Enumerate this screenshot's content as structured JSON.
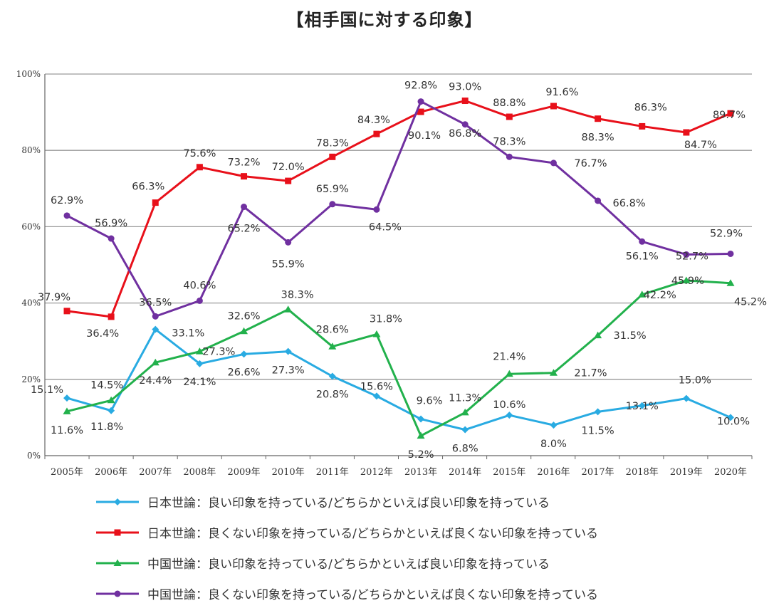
{
  "title": "【相手国に対する印象】",
  "chart_data": {
    "type": "line",
    "title": "【相手国に対する印象】",
    "x": [
      "2005年",
      "2006年",
      "2007年",
      "2008年",
      "2009年",
      "2010年",
      "2011年",
      "2012年",
      "2013年",
      "2014年",
      "2015年",
      "2016年",
      "2017年",
      "2018年",
      "2019年",
      "2020年"
    ],
    "yticks": [
      "0%",
      "20%",
      "40%",
      "60%",
      "80%",
      "100%"
    ],
    "ylim": [
      0,
      100
    ],
    "grid": "horizontal",
    "legend_position": "bottom",
    "series": [
      {
        "name": "日本世論：良い印象を持っている/どちらかといえば良い印象を持っている",
        "color": "#29abe2",
        "marker": "diamond",
        "values": [
          15.1,
          11.8,
          33.1,
          24.1,
          26.6,
          27.3,
          20.8,
          15.6,
          9.6,
          6.8,
          10.6,
          8.0,
          11.5,
          13.1,
          15.0,
          10.0
        ],
        "labels": [
          "15.1%",
          "11.8%",
          "33.1%",
          "24.1%",
          "26.6%",
          "27.3%",
          "20.8%",
          "15.6%",
          "9.6%",
          "6.8%",
          "10.6%",
          "8.0%",
          "11.5%",
          "13.1%",
          "15.0%",
          "10.0%"
        ]
      },
      {
        "name": "日本世論：良くない印象を持っている/どちらかといえば良くない印象を持っている",
        "color": "#e8101a",
        "marker": "square",
        "values": [
          37.9,
          36.4,
          66.3,
          75.6,
          73.2,
          72.0,
          78.3,
          84.3,
          90.1,
          93.0,
          88.8,
          91.6,
          88.3,
          86.3,
          84.7,
          89.7
        ],
        "labels": [
          "37.9%",
          "36.4%",
          "66.3%",
          "75.6%",
          "73.2%",
          "72.0%",
          "78.3%",
          "84.3%",
          "90.1%",
          "93.0%",
          "88.8%",
          "91.6%",
          "88.3%",
          "86.3%",
          "84.7%",
          "89.7%"
        ]
      },
      {
        "name": "中国世論：良い印象を持っている/どちらかといえば良い印象を持っている",
        "color": "#22b14c",
        "marker": "triangle",
        "values": [
          11.6,
          14.5,
          24.4,
          27.3,
          32.6,
          38.3,
          28.6,
          31.8,
          5.2,
          11.3,
          21.4,
          21.7,
          31.5,
          42.2,
          45.9,
          45.2
        ],
        "labels": [
          "11.6%",
          "14.5%",
          "24.4%",
          "27.3%",
          "32.6%",
          "38.3%",
          "28.6%",
          "31.8%",
          "5.2%",
          "11.3%",
          "21.4%",
          "21.7%",
          "31.5%",
          "42.2%",
          "45.9%",
          "45.2%"
        ]
      },
      {
        "name": "中国世論：良くない印象を持っている/どちらかといえば良くない印象を持っている",
        "color": "#7030a0",
        "marker": "circle",
        "values": [
          62.9,
          56.9,
          36.5,
          40.6,
          65.2,
          55.9,
          65.9,
          64.5,
          92.8,
          86.8,
          78.3,
          76.7,
          66.8,
          56.1,
          52.7,
          52.9
        ],
        "labels": [
          "62.9%",
          "56.9%",
          "36.5%",
          "40.6%",
          "65.2%",
          "55.9%",
          "65.9%",
          "64.5%",
          "92.8%",
          "86.8%",
          "78.3%",
          "76.7%",
          "66.8%",
          "56.1%",
          "52.7%",
          "52.9%"
        ]
      }
    ]
  }
}
